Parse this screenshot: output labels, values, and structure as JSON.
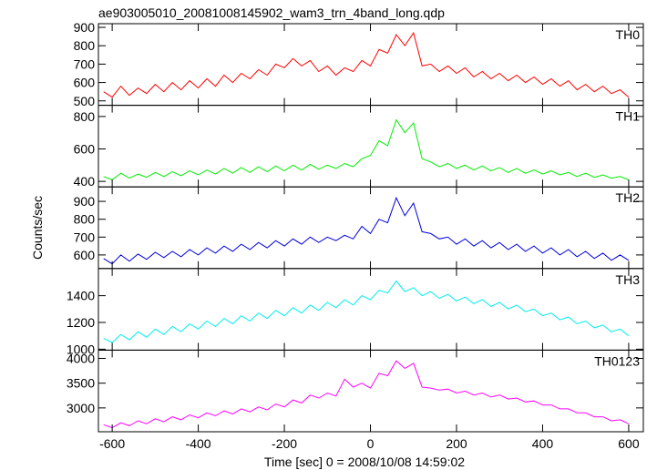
{
  "chart_data": {
    "type": "line",
    "title": "ae903005010_20081008145902_wam3_trn_4band_long.qdp",
    "xlabel": "Time [sec] 0 = 2008/10/08 14:59:02",
    "ylabel": "Counts/sec",
    "xlim": [
      -632,
      634
    ],
    "xticks": [
      -600,
      -400,
      -200,
      0,
      200,
      400,
      600
    ],
    "x": [
      -620,
      -600,
      -580,
      -560,
      -540,
      -520,
      -500,
      -480,
      -460,
      -440,
      -420,
      -400,
      -380,
      -360,
      -340,
      -320,
      -300,
      -280,
      -260,
      -240,
      -220,
      -200,
      -180,
      -160,
      -140,
      -120,
      -100,
      -80,
      -60,
      -40,
      -20,
      0,
      20,
      40,
      60,
      80,
      100,
      120,
      140,
      160,
      180,
      200,
      220,
      240,
      260,
      280,
      300,
      320,
      340,
      360,
      380,
      400,
      420,
      440,
      460,
      480,
      500,
      520,
      540,
      560,
      580,
      600
    ],
    "series": [
      {
        "name": "TH0",
        "color": "#ff0000",
        "ylim": [
          476,
          920
        ],
        "yticks": [
          500,
          600,
          700,
          800,
          900
        ],
        "values": [
          550,
          520,
          580,
          530,
          570,
          540,
          590,
          550,
          600,
          560,
          610,
          570,
          620,
          580,
          640,
          600,
          650,
          620,
          670,
          640,
          700,
          680,
          730,
          690,
          720,
          660,
          690,
          640,
          680,
          660,
          720,
          690,
          780,
          760,
          860,
          800,
          870,
          690,
          700,
          660,
          690,
          650,
          680,
          630,
          660,
          620,
          650,
          610,
          640,
          600,
          630,
          590,
          620,
          580,
          610,
          560,
          590,
          550,
          580,
          540,
          560,
          520
        ]
      },
      {
        "name": "TH1",
        "color": "#00ee00",
        "ylim": [
          366,
          869
        ],
        "yticks": [
          400,
          600,
          800
        ],
        "values": [
          430,
          410,
          450,
          420,
          445,
          425,
          455,
          430,
          460,
          435,
          465,
          440,
          470,
          445,
          480,
          450,
          485,
          455,
          490,
          460,
          495,
          465,
          500,
          470,
          505,
          475,
          500,
          480,
          510,
          490,
          540,
          560,
          650,
          620,
          780,
          700,
          760,
          540,
          520,
          490,
          510,
          480,
          500,
          470,
          495,
          465,
          485,
          455,
          480,
          450,
          470,
          445,
          465,
          440,
          455,
          430,
          450,
          425,
          440,
          420,
          430,
          410
        ]
      },
      {
        "name": "TH2",
        "color": "#0000dd",
        "ylim": [
          524,
          981
        ],
        "yticks": [
          600,
          700,
          800,
          900
        ],
        "values": [
          580,
          550,
          600,
          565,
          605,
          575,
          615,
          585,
          620,
          590,
          630,
          600,
          640,
          610,
          650,
          620,
          660,
          630,
          670,
          640,
          680,
          650,
          690,
          660,
          700,
          670,
          700,
          680,
          710,
          690,
          760,
          720,
          800,
          780,
          920,
          820,
          890,
          730,
          720,
          690,
          700,
          660,
          690,
          650,
          680,
          640,
          670,
          630,
          660,
          620,
          650,
          610,
          640,
          600,
          630,
          590,
          620,
          580,
          610,
          570,
          600,
          570
        ]
      },
      {
        "name": "TH3",
        "color": "#00eeee",
        "ylim": [
          993,
          1603
        ],
        "yticks": [
          1000,
          1200,
          1400
        ],
        "values": [
          1080,
          1050,
          1110,
          1070,
          1130,
          1090,
          1150,
          1110,
          1170,
          1130,
          1190,
          1150,
          1210,
          1170,
          1230,
          1190,
          1250,
          1210,
          1270,
          1230,
          1290,
          1250,
          1310,
          1270,
          1330,
          1290,
          1350,
          1310,
          1370,
          1330,
          1400,
          1370,
          1440,
          1420,
          1510,
          1430,
          1460,
          1400,
          1430,
          1380,
          1410,
          1360,
          1390,
          1340,
          1370,
          1320,
          1350,
          1300,
          1330,
          1280,
          1300,
          1250,
          1270,
          1220,
          1240,
          1190,
          1210,
          1160,
          1180,
          1130,
          1150,
          1100
        ]
      },
      {
        "name": "TH0123",
        "color": "#ff00ff",
        "ylim": [
          2519,
          4167
        ],
        "yticks": [
          3000,
          3500,
          4000
        ],
        "values": [
          2660,
          2600,
          2700,
          2640,
          2740,
          2680,
          2780,
          2720,
          2820,
          2760,
          2860,
          2800,
          2900,
          2840,
          2940,
          2880,
          2980,
          2920,
          3020,
          2960,
          3080,
          3020,
          3160,
          3100,
          3260,
          3200,
          3300,
          3240,
          3580,
          3420,
          3500,
          3400,
          3700,
          3650,
          3950,
          3800,
          3900,
          3420,
          3400,
          3360,
          3380,
          3300,
          3340,
          3260,
          3300,
          3220,
          3260,
          3180,
          3200,
          3120,
          3140,
          3060,
          3060,
          2980,
          2980,
          2900,
          2900,
          2820,
          2820,
          2740,
          2760,
          2680
        ]
      }
    ]
  }
}
